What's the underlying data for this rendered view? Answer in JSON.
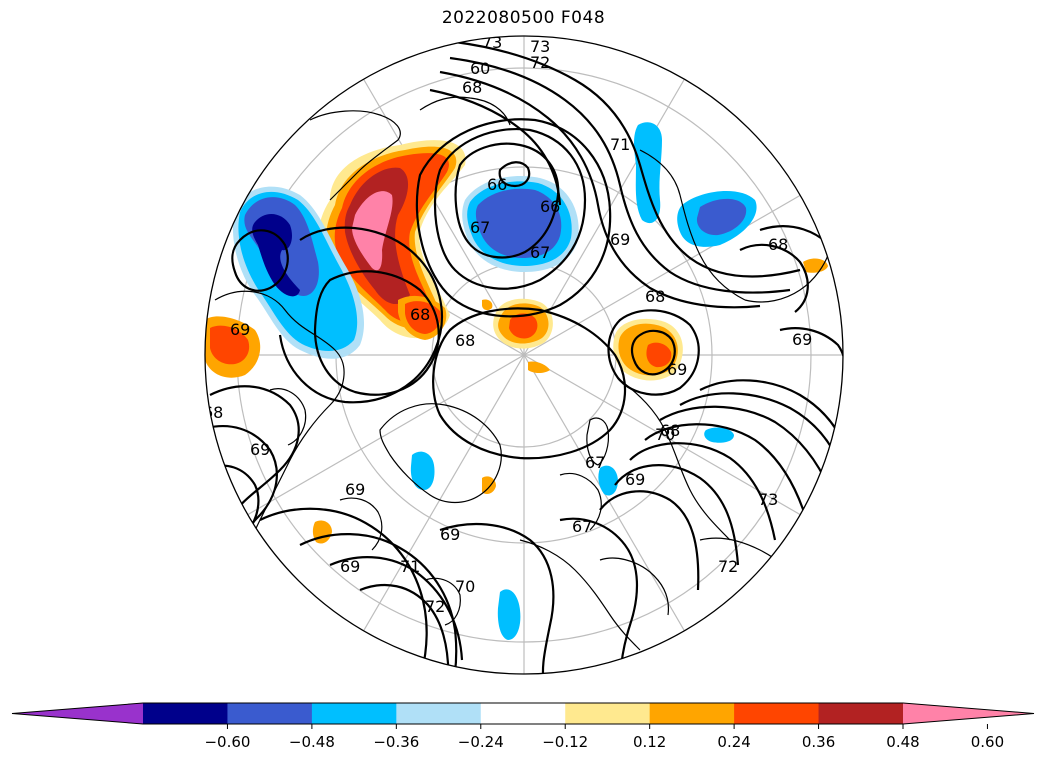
{
  "title": "2022080500 F048",
  "map": {
    "projection": "north-polar-stereographic",
    "contour_labels": [
      "73",
      "73",
      "72",
      "60",
      "68",
      "71",
      "66",
      "66",
      "67",
      "67",
      "68",
      "69",
      "68",
      "69",
      "68",
      "69",
      "69",
      "68",
      "69",
      "70",
      "67",
      "69",
      "67",
      "71",
      "70",
      "72",
      "73",
      "72",
      "69",
      "69",
      "69",
      "68",
      "68"
    ]
  },
  "colorbar": {
    "ticks": [
      "−0.60",
      "−0.48",
      "−0.36",
      "−0.24",
      "−0.12",
      "0.12",
      "0.24",
      "0.36",
      "0.48",
      "0.60"
    ],
    "colors": [
      "#9932cc",
      "#00008b",
      "#3a5bcf",
      "#00bfff",
      "#b0e0f7",
      "#ffffff",
      "#ffe98f",
      "#ffa500",
      "#ff4500",
      "#b22222",
      "#ff82a8"
    ],
    "extend": "both"
  }
}
